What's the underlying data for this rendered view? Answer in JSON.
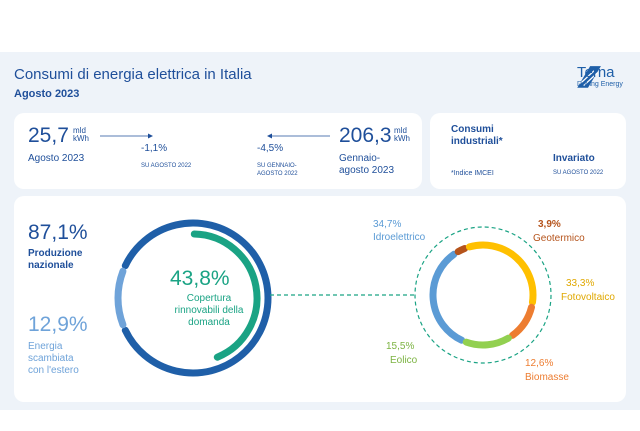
{
  "header": {
    "title": "Consumi di energia elettrica in Italia",
    "period": "Agosto 2023",
    "logo_name": "Terna",
    "logo_tagline": "Driving Energy"
  },
  "summary": {
    "monthly": {
      "value": "25,7",
      "unit_top": "mld",
      "unit_bottom": "kWh",
      "label": "Agosto 2023",
      "change": "-1,1%",
      "change_ref": "SU AGOSTO 2022"
    },
    "ytd": {
      "value": "206,3",
      "unit_top": "mld",
      "unit_bottom": "kWh",
      "label_line1": "Gennaio-",
      "label_line2": "agosto 2023",
      "change": "-4,5%",
      "change_ref_line1": "SU GENNAIO-",
      "change_ref_line2": "AGOSTO 2022"
    },
    "industrial": {
      "title_line1": "Consumi",
      "title_line2": "industriali*",
      "status": "Invariato",
      "note": "*Indice IMCEI",
      "ref": "SU AGOSTO 2022"
    }
  },
  "coverage": {
    "production_pct": "87,1%",
    "production_label_line1": "Produzione",
    "production_label_line2": "nazionale",
    "exchange_pct": "12,9%",
    "exchange_label_line1": "Energia",
    "exchange_label_line2": "scambiata",
    "exchange_label_line3": "con l'estero",
    "renewable_pct": "43,8%",
    "renewable_label_line1": "Copertura",
    "renewable_label_line2": "rinnovabili della",
    "renewable_label_line3": "domanda",
    "renewable_value": 43.8,
    "production_value": 87.1,
    "exchange_value": 12.9
  },
  "chart_data": {
    "type": "pie",
    "series": [
      {
        "name": "Idroelettrico",
        "label": "34,7%",
        "value": 34.7,
        "color": "#5b9bd5"
      },
      {
        "name": "Geotermico",
        "label": "3,9%",
        "value": 3.9,
        "color": "#b5531b"
      },
      {
        "name": "Fotovoltaico",
        "label": "33,3%",
        "value": 33.3,
        "color": "#ffc000"
      },
      {
        "name": "Biomasse",
        "label": "12,6%",
        "value": 12.6,
        "color": "#ed7d31"
      },
      {
        "name": "Eolico",
        "label": "15,5%",
        "value": 15.5,
        "color": "#92d050"
      }
    ]
  },
  "colors": {
    "brand": "#1f4f9a",
    "renewable": "#1aa384",
    "production": "#1f5fa8",
    "exchange": "#6fa3d9"
  }
}
